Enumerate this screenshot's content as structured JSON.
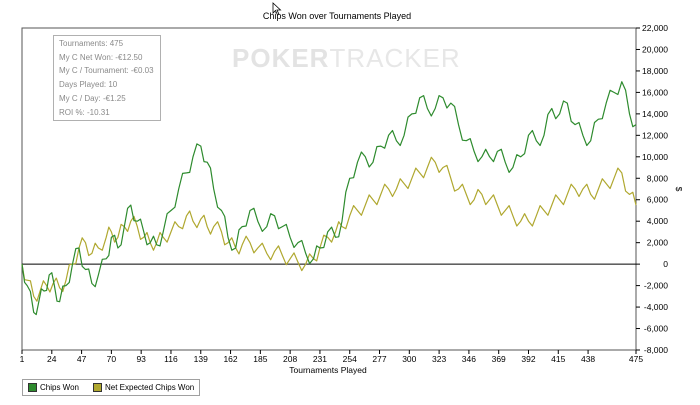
{
  "chart_data": {
    "type": "line",
    "title": "Chips Won over Tournaments Played",
    "xlabel": "Tournaments Played",
    "ylabel": "$",
    "xlim": [
      1,
      475
    ],
    "ylim": [
      -8000,
      22000
    ],
    "x_ticks": [
      "1",
      "24",
      "47",
      "70",
      "93",
      "116",
      "139",
      "162",
      "185",
      "208",
      "231",
      "254",
      "277",
      "300",
      "323",
      "346",
      "369",
      "392",
      "415",
      "438",
      "475"
    ],
    "y_ticks": [
      "22,000",
      "20,000",
      "18,000",
      "16,000",
      "14,000",
      "12,000",
      "10,000",
      "8,000",
      "6,000",
      "4,000",
      "2,000",
      "0",
      "-2,000",
      "-4,000",
      "-6,000",
      "-8,000"
    ],
    "grid": false,
    "legend_position": "bottom-left",
    "series": [
      {
        "name": "Chips Won",
        "color": "#2e8b2e",
        "x": [
          1,
          5,
          10,
          14,
          18,
          22,
          26,
          30,
          35,
          40,
          45,
          50,
          55,
          60,
          66,
          70,
          75,
          80,
          85,
          90,
          95,
          100,
          105,
          110,
          116,
          122,
          128,
          133,
          139,
          144,
          149,
          155,
          160,
          166,
          171,
          177,
          183,
          190,
          196,
          202,
          208,
          214,
          220,
          226,
          231,
          237,
          243,
          248,
          254,
          260,
          266,
          272,
          278,
          284,
          290,
          296,
          302,
          308,
          314,
          320,
          326,
          332,
          338,
          344,
          350,
          356,
          362,
          368,
          374,
          380,
          386,
          392,
          398,
          404,
          410,
          416,
          422,
          428,
          434,
          440,
          446,
          452,
          458,
          464,
          470,
          475
        ],
        "y": [
          0,
          -2000,
          -4500,
          -3500,
          -2500,
          -1000,
          -2000,
          -3500,
          -2000,
          0,
          1500,
          -500,
          -1800,
          -1000,
          500,
          2500,
          1500,
          3500,
          5500,
          4000,
          3000,
          2000,
          1800,
          3000,
          5000,
          7000,
          8500,
          10000,
          11000,
          9500,
          7000,
          5000,
          2500,
          1500,
          3500,
          5000,
          4000,
          3500,
          4500,
          3500,
          2500,
          2000,
          1000,
          500,
          1500,
          3000,
          2500,
          4000,
          8000,
          9500,
          10000,
          9500,
          11000,
          12000,
          11500,
          12000,
          14000,
          15500,
          14500,
          14500,
          15500,
          15000,
          13000,
          11500,
          10500,
          10000,
          10000,
          10500,
          9500,
          9000,
          10000,
          12000,
          11500,
          12000,
          14500,
          14000,
          15000,
          13000,
          12000,
          11500,
          13500,
          15000,
          16000,
          17000,
          14000,
          13000
        ]
      },
      {
        "name": "Net Expected Chips Won",
        "color": "#b0a830",
        "x": [
          1,
          5,
          10,
          15,
          20,
          25,
          30,
          35,
          40,
          45,
          50,
          55,
          60,
          66,
          70,
          75,
          80,
          85,
          90,
          95,
          100,
          105,
          110,
          116,
          122,
          128,
          133,
          139,
          144,
          149,
          155,
          160,
          166,
          171,
          177,
          183,
          190,
          196,
          202,
          208,
          214,
          220,
          226,
          231,
          237,
          243,
          248,
          254,
          260,
          266,
          272,
          278,
          284,
          290,
          296,
          302,
          308,
          314,
          320,
          326,
          332,
          338,
          344,
          350,
          356,
          362,
          368,
          374,
          380,
          386,
          392,
          398,
          404,
          410,
          416,
          422,
          428,
          434,
          440,
          446,
          452,
          458,
          464,
          470,
          475
        ],
        "y": [
          0,
          -1500,
          -3000,
          -2500,
          -2000,
          -1800,
          -2200,
          -1500,
          0,
          1500,
          2000,
          1000,
          1500,
          2500,
          3000,
          2500,
          3500,
          4000,
          3500,
          2500,
          2000,
          2000,
          2500,
          3000,
          3500,
          4500,
          4000,
          4200,
          3500,
          3500,
          3000,
          2000,
          1500,
          1800,
          2000,
          1500,
          1000,
          1200,
          800,
          500,
          200,
          0,
          500,
          1500,
          2500,
          3000,
          3500,
          4500,
          5000,
          5500,
          6000,
          6500,
          7000,
          7000,
          7500,
          8000,
          8500,
          9000,
          9500,
          9000,
          8000,
          7000,
          6500,
          6000,
          6500,
          6000,
          5500,
          5000,
          4500,
          4000,
          4000,
          4500,
          5000,
          5500,
          6000,
          6500,
          7000,
          7000,
          6500,
          7000,
          7500,
          8000,
          8500,
          6500,
          5500
        ]
      }
    ]
  },
  "stats": {
    "lines": [
      "Tournaments: 475",
      "My C Net Won: -€12.50",
      "My C / Tournament: -€0.03",
      "Days Played: 10",
      "My C / Day: -€1.25",
      "ROI %: -10.31"
    ]
  },
  "watermark": {
    "bold": "POKER",
    "thin": "TRACKER"
  }
}
